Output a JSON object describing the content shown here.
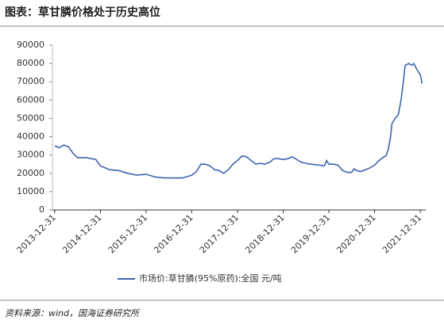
{
  "chart_data": {
    "type": "line",
    "title": "图表：草甘膦价格处于历史高位",
    "source": "资料来源：wind，国海证券研究所",
    "x": [
      2014.0,
      2014.1,
      2014.2,
      2014.3,
      2014.4,
      2014.5,
      2014.7,
      2014.9,
      2015.0,
      2015.1,
      2015.2,
      2015.4,
      2015.6,
      2015.8,
      2016.0,
      2016.2,
      2016.4,
      2016.6,
      2016.8,
      2017.0,
      2017.1,
      2017.2,
      2017.3,
      2017.4,
      2017.5,
      2017.6,
      2017.7,
      2017.8,
      2017.9,
      2018.0,
      2018.1,
      2018.2,
      2018.3,
      2018.4,
      2018.5,
      2018.6,
      2018.7,
      2018.8,
      2018.9,
      2019.0,
      2019.1,
      2019.2,
      2019.3,
      2019.4,
      2019.5,
      2019.6,
      2019.8,
      2019.9,
      2019.95,
      2020.0,
      2020.1,
      2020.2,
      2020.3,
      2020.4,
      2020.5,
      2020.55,
      2020.6,
      2020.7,
      2020.8,
      2020.9,
      2021.0,
      2021.1,
      2021.2,
      2021.25,
      2021.3,
      2021.35,
      2021.38,
      2021.45,
      2021.52,
      2021.58,
      2021.63,
      2021.67,
      2021.75,
      2021.82,
      2021.86,
      2021.92,
      2021.97,
      2022.0,
      2022.04
    ],
    "series": [
      {
        "name": "市场价:草甘膦(95%原药):全国  元/吨",
        "color": "#3e64b0",
        "values": [
          35000,
          34000,
          35500,
          34500,
          31000,
          28500,
          28500,
          27500,
          24000,
          23000,
          22000,
          21500,
          20000,
          19000,
          19500,
          18000,
          17500,
          17500,
          17500,
          19000,
          21000,
          25000,
          25000,
          24000,
          22000,
          21500,
          20000,
          22000,
          25000,
          27000,
          29500,
          29000,
          27000,
          25000,
          25500,
          25000,
          26000,
          28000,
          28000,
          27500,
          28000,
          29000,
          27500,
          26000,
          25500,
          25000,
          24500,
          24000,
          27000,
          25000,
          25000,
          24500,
          21500,
          20500,
          20500,
          22500,
          21500,
          21000,
          22000,
          23000,
          24500,
          27000,
          29000,
          29500,
          33000,
          40000,
          47000,
          50000,
          52000,
          60000,
          70000,
          79000,
          80000,
          79000,
          80000,
          77000,
          75000,
          74000,
          69000
        ]
      }
    ],
    "xlim": [
      2013.95,
      2022.12
    ],
    "xticks": [
      {
        "value": 2014.0,
        "label": "2013-12-31"
      },
      {
        "value": 2015.0,
        "label": "2014-12-31"
      },
      {
        "value": 2016.0,
        "label": "2015-12-31"
      },
      {
        "value": 2017.0,
        "label": "2016-12-31"
      },
      {
        "value": 2018.0,
        "label": "2017-12-31"
      },
      {
        "value": 2019.0,
        "label": "2018-12-31"
      },
      {
        "value": 2020.0,
        "label": "2019-12-31"
      },
      {
        "value": 2021.0,
        "label": "2020-12-31"
      },
      {
        "value": 2022.0,
        "label": "2021-12-31"
      }
    ],
    "ylim": [
      0,
      90000
    ],
    "yticks": [
      0,
      10000,
      20000,
      30000,
      40000,
      50000,
      60000,
      70000,
      80000,
      90000
    ]
  }
}
